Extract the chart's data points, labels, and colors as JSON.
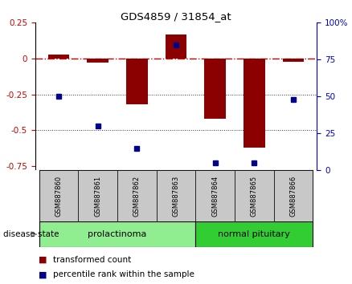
{
  "title": "GDS4859 / 31854_at",
  "samples": [
    "GSM887860",
    "GSM887861",
    "GSM887862",
    "GSM887863",
    "GSM887864",
    "GSM887865",
    "GSM887866"
  ],
  "red_values": [
    0.03,
    -0.03,
    -0.32,
    0.17,
    -0.42,
    -0.62,
    -0.02
  ],
  "blue_percentiles": [
    50,
    30,
    15,
    85,
    5,
    5,
    48
  ],
  "ylim_left": [
    -0.78,
    0.25
  ],
  "ylim_right": [
    0,
    100
  ],
  "yticks_left": [
    0.25,
    0,
    -0.25,
    -0.5,
    -0.75
  ],
  "yticks_right": [
    100,
    75,
    50,
    25,
    0
  ],
  "disease_groups": [
    {
      "label": "prolactinoma",
      "count": 4,
      "color": "#90EE90"
    },
    {
      "label": "normal pituitary",
      "count": 3,
      "color": "#32CD32"
    }
  ],
  "bar_color": "#8B0000",
  "dot_color": "#00008B",
  "zero_line_color": "#CC0000",
  "dotted_line_color": "#333333",
  "background_plot": "#FFFFFF",
  "background_header": "#C8C8C8",
  "legend_red_label": "transformed count",
  "legend_blue_label": "percentile rank within the sample",
  "bar_width": 0.55
}
